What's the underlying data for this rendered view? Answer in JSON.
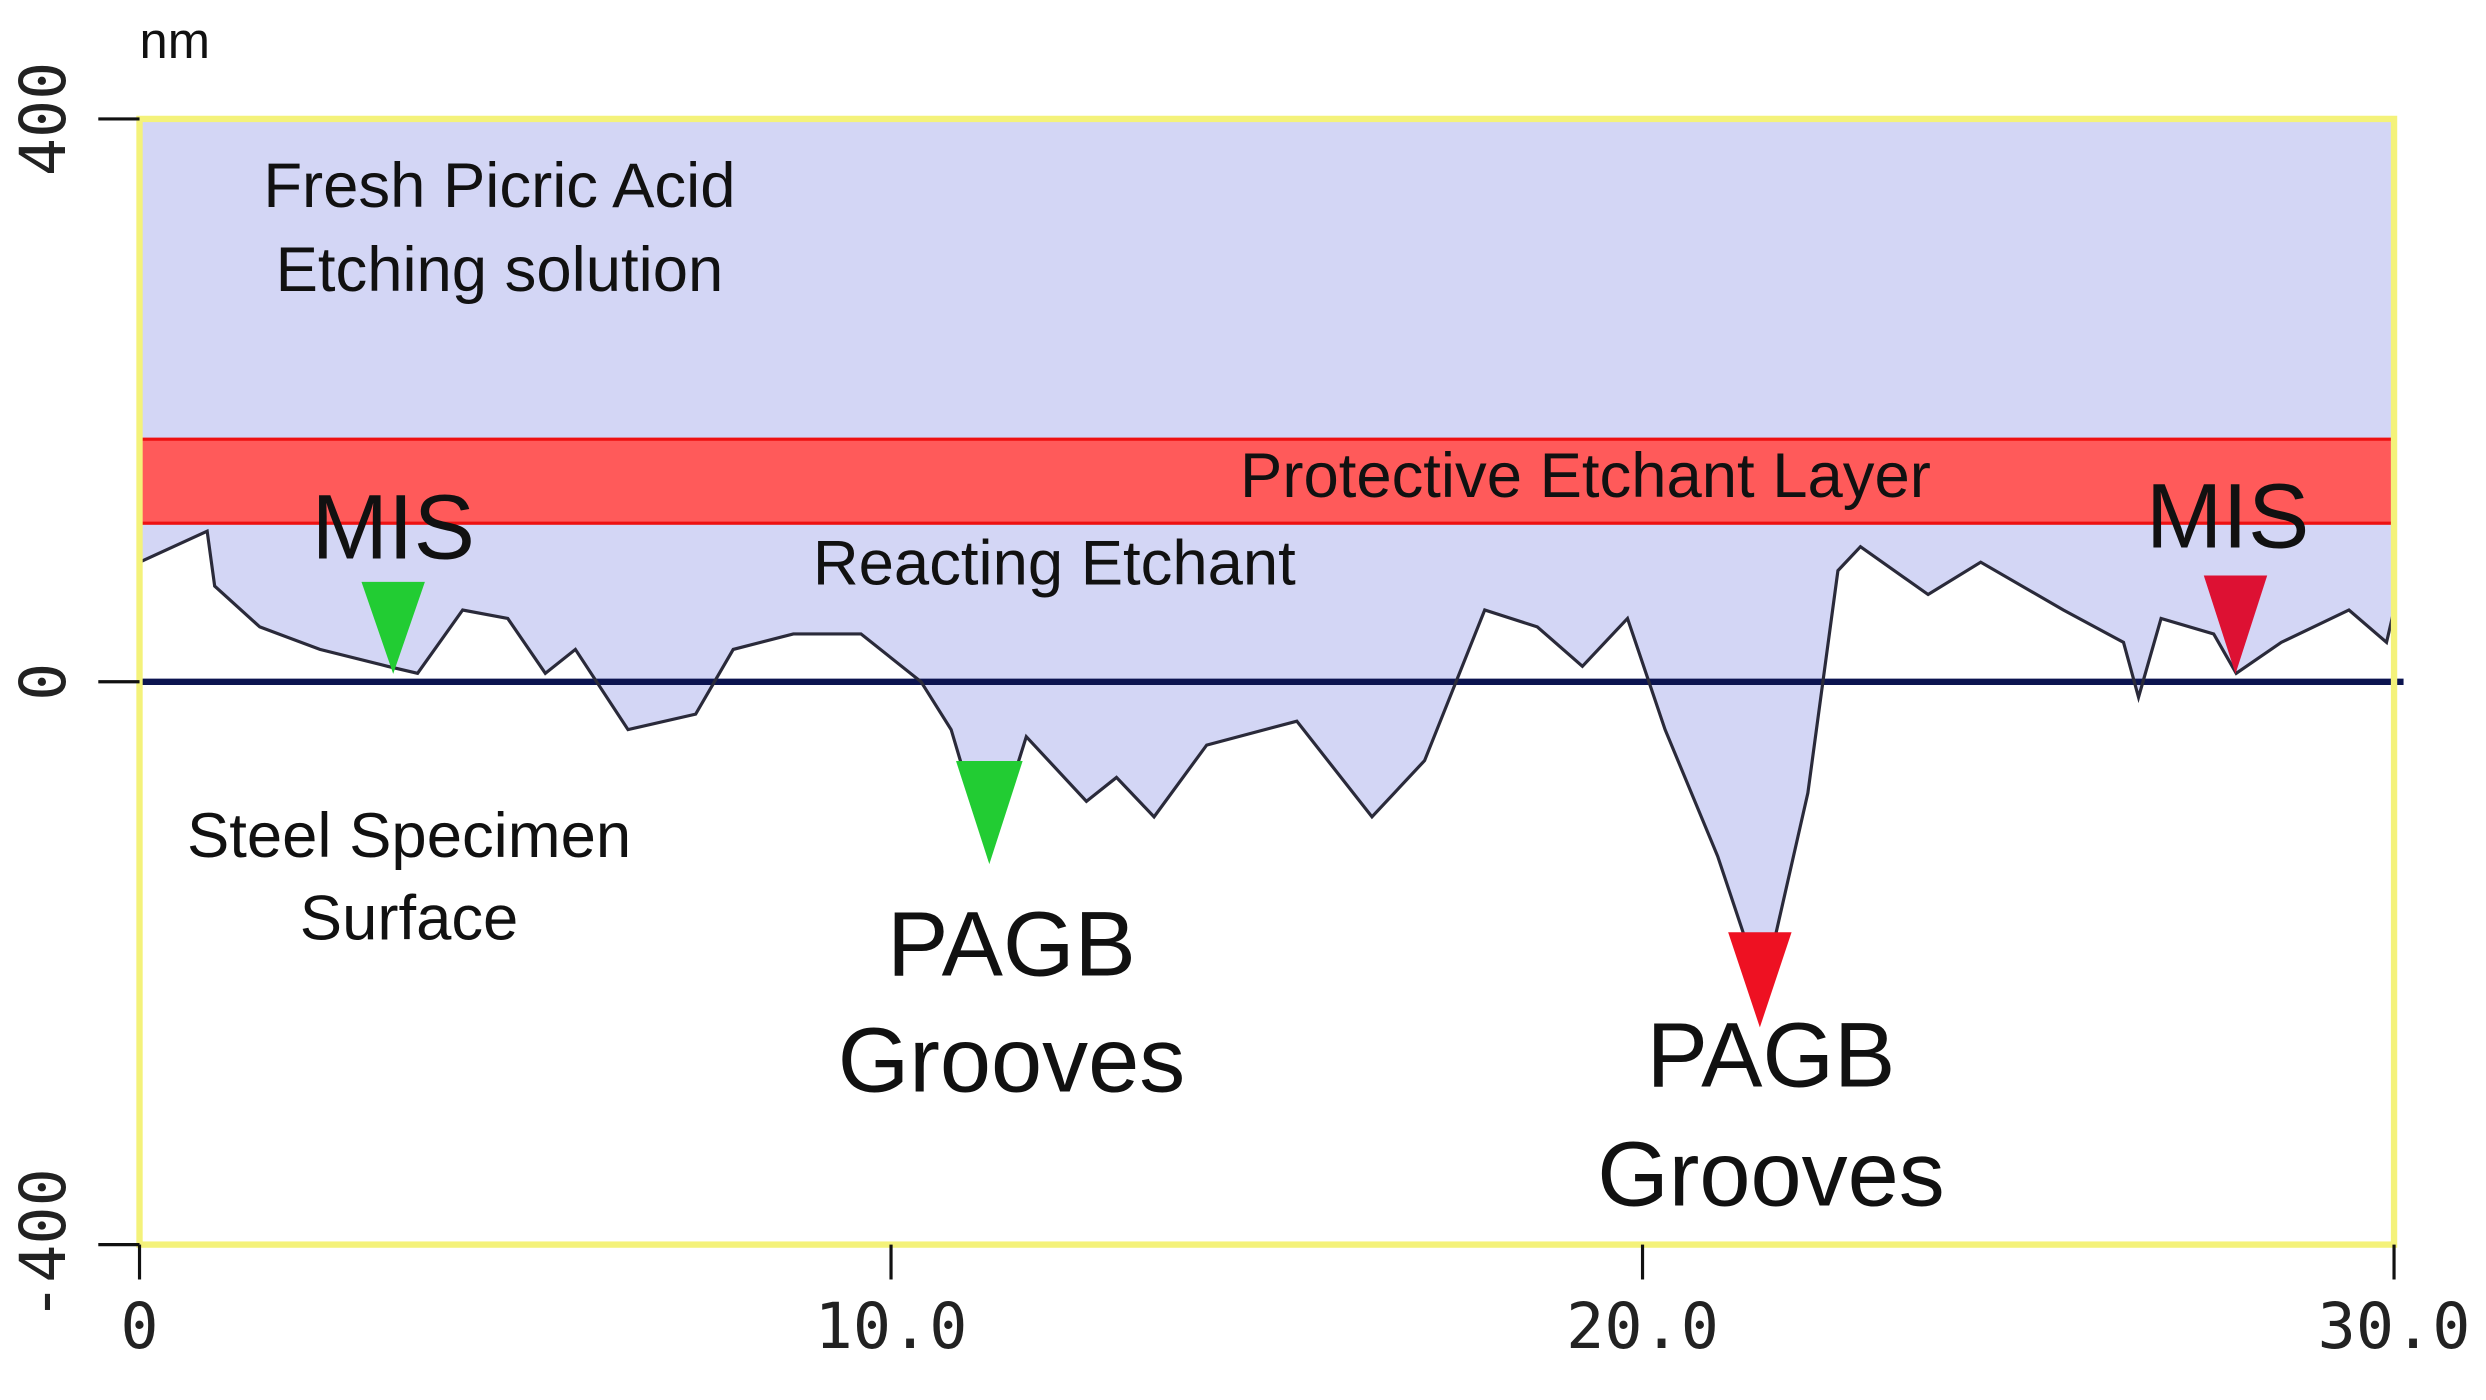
{
  "chart_data": {
    "type": "line",
    "y_unit": "nm",
    "x": [
      0,
      0.9,
      1.0,
      1.6,
      2.4,
      3.3,
      3.7,
      4.3,
      4.9,
      5.4,
      5.8,
      6.5,
      7.4,
      7.9,
      8.7,
      9.6,
      10.4,
      10.8,
      11.3,
      11.8,
      12.6,
      13.0,
      13.5,
      14.2,
      15.4,
      16.4,
      17.1,
      17.9,
      18.6,
      19.2,
      19.8,
      20.3,
      21.0,
      21.6,
      22.2,
      22.6,
      22.9,
      23.8,
      24.5,
      25.6,
      26.4,
      26.6,
      26.9,
      27.6,
      27.9,
      28.5,
      29.4,
      29.9,
      30
    ],
    "series": [
      {
        "color": "#2a2a3a",
        "values": [
          85,
          107,
          68,
          39,
          23,
          11,
          6,
          51,
          45,
          6,
          23,
          -34,
          -23,
          23,
          34,
          34,
          0,
          -34,
          -124,
          -39,
          -85,
          -68,
          -96,
          -45,
          -28,
          -96,
          -56,
          51,
          39,
          11,
          45,
          -34,
          -124,
          -220,
          -79,
          79,
          96,
          62,
          85,
          51,
          28,
          -11,
          45,
          34,
          6,
          28,
          51,
          28,
          51
        ]
      }
    ],
    "xlim": [
      0,
      30
    ],
    "ylim": [
      -400,
      400
    ],
    "xticks": [
      0,
      {
        "value": 10,
        "label": "10.0"
      },
      {
        "value": 20,
        "label": "20.0"
      },
      {
        "value": 30,
        "label": "30.0"
      }
    ],
    "yticks": [
      -400,
      0,
      400
    ],
    "annotations": [
      "Fresh Picric Acid",
      "Etching solution",
      "Protective Etchant Layer",
      "MIS",
      "Reacting Etchant",
      "MIS",
      "Steel Specimen",
      "Surface",
      "PAGB",
      "Grooves",
      "PAGB",
      "Grooves"
    ]
  }
}
